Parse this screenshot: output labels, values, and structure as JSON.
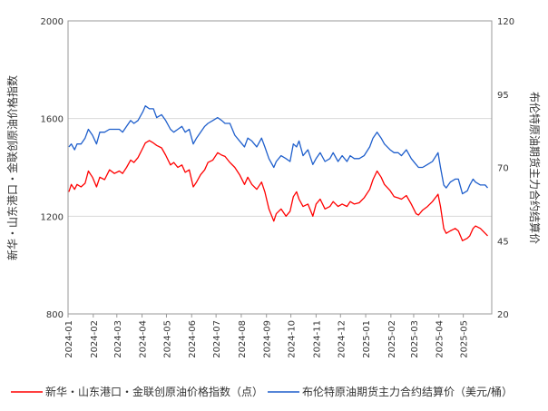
{
  "chart_data": {
    "type": "line",
    "left_axis": {
      "label": "新华・山东港口・金联创原油价格指数",
      "range": [
        800,
        2000
      ],
      "ticks": [
        800,
        1200,
        1600,
        2000
      ]
    },
    "right_axis": {
      "label": "布伦特原油期货主力合约结算价",
      "range": [
        20,
        120
      ],
      "ticks": [
        20,
        45,
        70,
        95,
        120
      ]
    },
    "x_axis": {
      "tick_labels": [
        "2024-01",
        "2024-02",
        "2024-03",
        "2024-04",
        "2024-05",
        "2024-06",
        "2024-07",
        "2024-08",
        "2024-09",
        "2024-10",
        "2024-11",
        "2024-12",
        "2025-01",
        "2025-02",
        "2025-03",
        "2025-04",
        "2025-05"
      ]
    },
    "grid": "horizontal",
    "legend_position": "bottom",
    "series": [
      {
        "name": "新华・山东港口・金联创原油价格指数（点）",
        "axis": "left",
        "color": "#ff0000",
        "points": [
          [
            "2024-01-02",
            1300
          ],
          [
            "2024-01-05",
            1330
          ],
          [
            "2024-01-09",
            1310
          ],
          [
            "2024-01-12",
            1330
          ],
          [
            "2024-01-17",
            1320
          ],
          [
            "2024-01-22",
            1335
          ],
          [
            "2024-01-26",
            1385
          ],
          [
            "2024-01-31",
            1360
          ],
          [
            "2024-02-05",
            1320
          ],
          [
            "2024-02-09",
            1360
          ],
          [
            "2024-02-15",
            1350
          ],
          [
            "2024-02-21",
            1390
          ],
          [
            "2024-02-27",
            1375
          ],
          [
            "2024-03-04",
            1385
          ],
          [
            "2024-03-08",
            1375
          ],
          [
            "2024-03-13",
            1400
          ],
          [
            "2024-03-18",
            1430
          ],
          [
            "2024-03-22",
            1420
          ],
          [
            "2024-03-27",
            1440
          ],
          [
            "2024-04-02",
            1480
          ],
          [
            "2024-04-05",
            1500
          ],
          [
            "2024-04-10",
            1510
          ],
          [
            "2024-04-15",
            1500
          ],
          [
            "2024-04-19",
            1490
          ],
          [
            "2024-04-25",
            1480
          ],
          [
            "2024-04-30",
            1450
          ],
          [
            "2024-05-06",
            1410
          ],
          [
            "2024-05-10",
            1420
          ],
          [
            "2024-05-15",
            1400
          ],
          [
            "2024-05-20",
            1410
          ],
          [
            "2024-05-24",
            1380
          ],
          [
            "2024-05-29",
            1390
          ],
          [
            "2024-06-03",
            1320
          ],
          [
            "2024-06-07",
            1340
          ],
          [
            "2024-06-12",
            1370
          ],
          [
            "2024-06-17",
            1390
          ],
          [
            "2024-06-21",
            1420
          ],
          [
            "2024-06-27",
            1430
          ],
          [
            "2024-07-03",
            1460
          ],
          [
            "2024-07-08",
            1450
          ],
          [
            "2024-07-12",
            1445
          ],
          [
            "2024-07-18",
            1420
          ],
          [
            "2024-07-24",
            1400
          ],
          [
            "2024-07-30",
            1370
          ],
          [
            "2024-08-05",
            1330
          ],
          [
            "2024-08-09",
            1360
          ],
          [
            "2024-08-14",
            1330
          ],
          [
            "2024-08-20",
            1310
          ],
          [
            "2024-08-26",
            1340
          ],
          [
            "2024-08-30",
            1300
          ],
          [
            "2024-09-04",
            1230
          ],
          [
            "2024-09-10",
            1180
          ],
          [
            "2024-09-13",
            1210
          ],
          [
            "2024-09-19",
            1230
          ],
          [
            "2024-09-25",
            1200
          ],
          [
            "2024-09-30",
            1220
          ],
          [
            "2024-10-04",
            1280
          ],
          [
            "2024-10-08",
            1300
          ],
          [
            "2024-10-11",
            1270
          ],
          [
            "2024-10-16",
            1240
          ],
          [
            "2024-10-22",
            1250
          ],
          [
            "2024-10-28",
            1200
          ],
          [
            "2024-11-01",
            1250
          ],
          [
            "2024-11-06",
            1270
          ],
          [
            "2024-11-12",
            1230
          ],
          [
            "2024-11-18",
            1240
          ],
          [
            "2024-11-22",
            1260
          ],
          [
            "2024-11-28",
            1240
          ],
          [
            "2024-12-03",
            1250
          ],
          [
            "2024-12-09",
            1240
          ],
          [
            "2024-12-13",
            1260
          ],
          [
            "2024-12-18",
            1250
          ],
          [
            "2024-12-24",
            1255
          ],
          [
            "2024-12-30",
            1275
          ],
          [
            "2025-01-06",
            1310
          ],
          [
            "2025-01-10",
            1350
          ],
          [
            "2025-01-15",
            1385
          ],
          [
            "2025-01-20",
            1360
          ],
          [
            "2025-01-24",
            1330
          ],
          [
            "2025-01-31",
            1305
          ],
          [
            "2025-02-05",
            1280
          ],
          [
            "2025-02-10",
            1275
          ],
          [
            "2025-02-14",
            1270
          ],
          [
            "2025-02-20",
            1285
          ],
          [
            "2025-02-26",
            1250
          ],
          [
            "2025-03-04",
            1210
          ],
          [
            "2025-03-07",
            1205
          ],
          [
            "2025-03-12",
            1225
          ],
          [
            "2025-03-18",
            1240
          ],
          [
            "2025-03-24",
            1260
          ],
          [
            "2025-03-31",
            1290
          ],
          [
            "2025-04-03",
            1240
          ],
          [
            "2025-04-07",
            1150
          ],
          [
            "2025-04-10",
            1130
          ],
          [
            "2025-04-15",
            1140
          ],
          [
            "2025-04-21",
            1150
          ],
          [
            "2025-04-25",
            1140
          ],
          [
            "2025-04-30",
            1100
          ],
          [
            "2025-05-06",
            1110
          ],
          [
            "2025-05-09",
            1120
          ],
          [
            "2025-05-13",
            1150
          ],
          [
            "2025-05-16",
            1160
          ],
          [
            "2025-05-22",
            1150
          ],
          [
            "2025-05-28",
            1130
          ],
          [
            "2025-05-31",
            1120
          ]
        ]
      },
      {
        "name": "布伦特原油期货主力合约结算价（美元/桶）",
        "axis": "right",
        "color": "#1f5fcc",
        "points": [
          [
            "2024-01-02",
            77
          ],
          [
            "2024-01-05",
            78
          ],
          [
            "2024-01-09",
            76
          ],
          [
            "2024-01-12",
            78
          ],
          [
            "2024-01-17",
            78
          ],
          [
            "2024-01-22",
            80
          ],
          [
            "2024-01-26",
            83
          ],
          [
            "2024-01-31",
            81
          ],
          [
            "2024-02-05",
            78
          ],
          [
            "2024-02-09",
            82
          ],
          [
            "2024-02-15",
            82
          ],
          [
            "2024-02-21",
            83
          ],
          [
            "2024-02-27",
            83
          ],
          [
            "2024-03-04",
            83
          ],
          [
            "2024-03-08",
            82
          ],
          [
            "2024-03-13",
            84
          ],
          [
            "2024-03-18",
            86
          ],
          [
            "2024-03-22",
            85
          ],
          [
            "2024-03-27",
            86
          ],
          [
            "2024-04-02",
            89
          ],
          [
            "2024-04-05",
            91
          ],
          [
            "2024-04-10",
            90
          ],
          [
            "2024-04-15",
            90
          ],
          [
            "2024-04-19",
            87
          ],
          [
            "2024-04-25",
            88
          ],
          [
            "2024-04-30",
            86
          ],
          [
            "2024-05-06",
            83
          ],
          [
            "2024-05-10",
            82
          ],
          [
            "2024-05-15",
            83
          ],
          [
            "2024-05-20",
            84
          ],
          [
            "2024-05-24",
            82
          ],
          [
            "2024-05-29",
            83
          ],
          [
            "2024-06-03",
            78
          ],
          [
            "2024-06-07",
            80
          ],
          [
            "2024-06-12",
            82
          ],
          [
            "2024-06-17",
            84
          ],
          [
            "2024-06-21",
            85
          ],
          [
            "2024-06-27",
            86
          ],
          [
            "2024-07-03",
            87
          ],
          [
            "2024-07-08",
            86
          ],
          [
            "2024-07-12",
            85
          ],
          [
            "2024-07-18",
            85
          ],
          [
            "2024-07-24",
            81
          ],
          [
            "2024-07-30",
            79
          ],
          [
            "2024-08-05",
            77
          ],
          [
            "2024-08-09",
            80
          ],
          [
            "2024-08-14",
            79
          ],
          [
            "2024-08-20",
            77
          ],
          [
            "2024-08-26",
            80
          ],
          [
            "2024-08-30",
            77
          ],
          [
            "2024-09-04",
            73
          ],
          [
            "2024-09-10",
            70
          ],
          [
            "2024-09-13",
            72
          ],
          [
            "2024-09-19",
            74
          ],
          [
            "2024-09-25",
            73
          ],
          [
            "2024-09-30",
            72
          ],
          [
            "2024-10-04",
            78
          ],
          [
            "2024-10-08",
            77
          ],
          [
            "2024-10-11",
            79
          ],
          [
            "2024-10-16",
            74
          ],
          [
            "2024-10-22",
            76
          ],
          [
            "2024-10-28",
            71
          ],
          [
            "2024-11-01",
            73
          ],
          [
            "2024-11-06",
            75
          ],
          [
            "2024-11-12",
            72
          ],
          [
            "2024-11-18",
            73
          ],
          [
            "2024-11-22",
            75
          ],
          [
            "2024-11-28",
            72
          ],
          [
            "2024-12-03",
            74
          ],
          [
            "2024-12-09",
            72
          ],
          [
            "2024-12-13",
            74
          ],
          [
            "2024-12-18",
            73
          ],
          [
            "2024-12-24",
            73
          ],
          [
            "2024-12-30",
            74
          ],
          [
            "2025-01-06",
            77
          ],
          [
            "2025-01-10",
            80
          ],
          [
            "2025-01-15",
            82
          ],
          [
            "2025-01-20",
            80
          ],
          [
            "2025-01-24",
            78
          ],
          [
            "2025-01-31",
            76
          ],
          [
            "2025-02-05",
            75
          ],
          [
            "2025-02-10",
            75
          ],
          [
            "2025-02-14",
            74
          ],
          [
            "2025-02-20",
            76
          ],
          [
            "2025-02-26",
            73
          ],
          [
            "2025-03-04",
            71
          ],
          [
            "2025-03-07",
            70
          ],
          [
            "2025-03-12",
            70
          ],
          [
            "2025-03-18",
            71
          ],
          [
            "2025-03-24",
            72
          ],
          [
            "2025-03-31",
            75
          ],
          [
            "2025-04-03",
            70
          ],
          [
            "2025-04-07",
            64
          ],
          [
            "2025-04-10",
            63
          ],
          [
            "2025-04-15",
            65
          ],
          [
            "2025-04-21",
            66
          ],
          [
            "2025-04-25",
            66
          ],
          [
            "2025-04-30",
            61
          ],
          [
            "2025-05-06",
            62
          ],
          [
            "2025-05-09",
            64
          ],
          [
            "2025-05-13",
            66
          ],
          [
            "2025-05-16",
            65
          ],
          [
            "2025-05-22",
            64
          ],
          [
            "2025-05-28",
            64
          ],
          [
            "2025-05-31",
            63
          ]
        ]
      }
    ]
  }
}
